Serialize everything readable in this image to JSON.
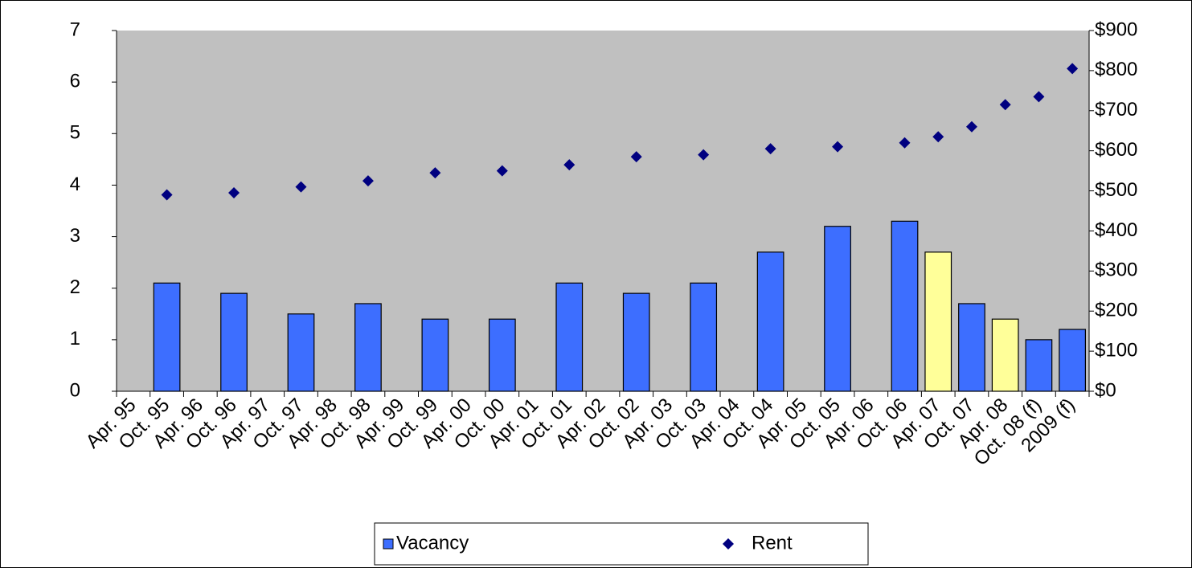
{
  "chart_data": {
    "type": "bar+scatter",
    "categories": [
      "Apr. 95",
      "Oct. 95",
      "Apr. 96",
      "Oct. 96",
      "Apr. 97",
      "Oct. 97",
      "Apr. 98",
      "Oct. 98",
      "Apr. 99",
      "Oct. 99",
      "Apr. 00",
      "Oct. 00",
      "Apr. 01",
      "Oct. 01",
      "Apr. 02",
      "Oct. 02",
      "Apr. 03",
      "Oct. 03",
      "Apr. 04",
      "Oct. 04",
      "Apr. 05",
      "Oct. 05",
      "Apr. 06",
      "Oct. 06",
      "Apr. 07",
      "Oct. 07",
      "Apr. 08",
      "Oct. 08 (f)",
      "2009 (f)"
    ],
    "series": [
      {
        "name": "Vacancy",
        "type": "bar",
        "color": "#3d6eff",
        "colors": [
          null,
          "#3d6eff",
          null,
          "#3d6eff",
          null,
          "#3d6eff",
          null,
          "#3d6eff",
          null,
          "#3d6eff",
          null,
          "#3d6eff",
          null,
          "#3d6eff",
          null,
          "#3d6eff",
          null,
          "#3d6eff",
          null,
          "#3d6eff",
          null,
          "#3d6eff",
          null,
          "#3d6eff",
          "#ffff99",
          "#3d6eff",
          "#ffff99",
          "#3d6eff",
          "#3d6eff"
        ],
        "values": [
          null,
          2.1,
          null,
          1.9,
          null,
          1.5,
          null,
          1.7,
          null,
          1.4,
          null,
          1.4,
          null,
          2.1,
          null,
          1.9,
          null,
          2.1,
          null,
          2.7,
          null,
          3.2,
          null,
          3.3,
          2.7,
          1.7,
          1.4,
          1.0,
          1.2
        ]
      },
      {
        "name": "Rent",
        "type": "scatter",
        "axis": "y2",
        "color": "#000080",
        "values": [
          null,
          490,
          null,
          495,
          null,
          510,
          null,
          525,
          null,
          545,
          null,
          550,
          null,
          565,
          null,
          585,
          null,
          590,
          null,
          605,
          null,
          610,
          null,
          620,
          635,
          660,
          715,
          735,
          805
        ]
      }
    ],
    "ylim": [
      0,
      7
    ],
    "yticks": [
      0,
      1,
      2,
      3,
      4,
      5,
      6,
      7
    ],
    "y2lim": [
      0,
      900
    ],
    "y2ticks": [
      {
        "value": 0,
        "label": "$0"
      },
      {
        "value": 100,
        "label": "$100"
      },
      {
        "value": 200,
        "label": "$200"
      },
      {
        "value": 300,
        "label": "$300"
      },
      {
        "value": 400,
        "label": "$400"
      },
      {
        "value": 500,
        "label": "$500"
      },
      {
        "value": 600,
        "label": "$600"
      },
      {
        "value": 700,
        "label": "$700"
      },
      {
        "value": 800,
        "label": "$800"
      },
      {
        "value": 900,
        "label": "$900"
      }
    ],
    "legend": "bottom"
  }
}
